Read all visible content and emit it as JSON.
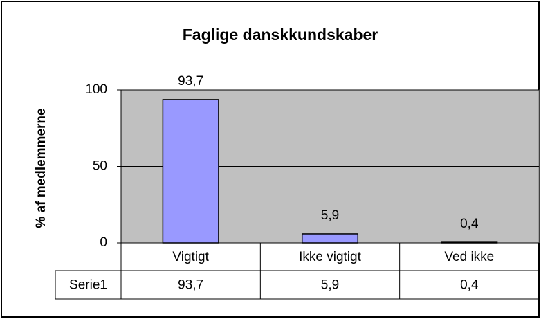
{
  "chart_data": {
    "type": "bar",
    "title": "Faglige danskkundskaber",
    "y_label": "% af medlemmerne",
    "categories": [
      "Vigtigt",
      "Ikke vigtigt",
      "Ved ikke"
    ],
    "series": [
      {
        "name": "Serie1",
        "color": "#9999ff",
        "values": [
          93.7,
          5.9,
          0.4
        ],
        "value_labels": [
          "93,7",
          "5,9",
          "0,4"
        ]
      }
    ],
    "ylim": [
      0,
      100
    ],
    "yticks": [
      0,
      50,
      100
    ],
    "grid": true,
    "data_table": true,
    "plot_background": "#c0c0c0"
  }
}
